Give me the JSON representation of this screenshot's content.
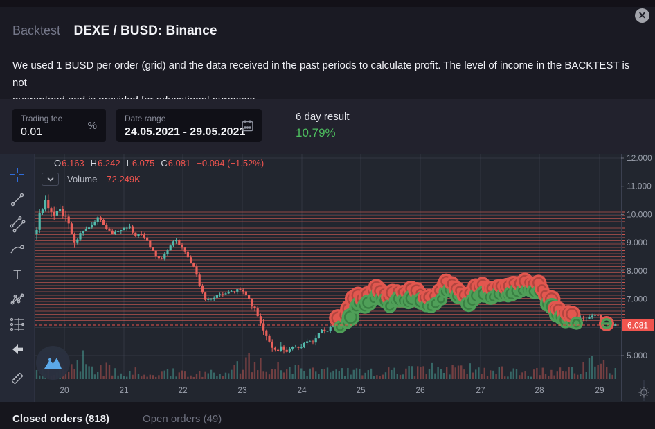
{
  "modal": {
    "eyebrow": "Backtest",
    "title": "DEXE / BUSD: Binance",
    "description_line1": "We used 1 BUSD per order (grid) and the data received in the past periods to calculate profit. The level of income in the BACKTEST is not",
    "description_line2": "guaranteed and is provided for educational purposes.",
    "close_label": "✕"
  },
  "controls": {
    "trading_fee": {
      "label": "Trading fee",
      "value": "0.01",
      "suffix": "%"
    },
    "date_range": {
      "label": "Date range",
      "value": "24.05.2021 - 29.05.2021"
    },
    "result": {
      "label": "6 day result",
      "value": "10.79%",
      "color": "#4dbc5e"
    }
  },
  "tabs": {
    "closed": "Closed orders (818)",
    "open": "Open orders (49)"
  },
  "chart_data": {
    "type": "candlestick",
    "legend": {
      "pairs": [
        [
          "O",
          "6.163"
        ],
        [
          "H",
          "6.242"
        ],
        [
          "L",
          "6.075"
        ],
        [
          "C",
          "6.081"
        ]
      ],
      "change": "−0.094 (−1.52%)"
    },
    "volume_legend": {
      "label": "Volume",
      "value": "72.249K"
    },
    "x_ticks": [
      {
        "label": "20",
        "x": 93
      },
      {
        "label": "21",
        "x": 179
      },
      {
        "label": "22",
        "x": 264
      },
      {
        "label": "23",
        "x": 350
      },
      {
        "label": "24",
        "x": 436
      },
      {
        "label": "25",
        "x": 521
      },
      {
        "label": "26",
        "x": 607
      },
      {
        "label": "27",
        "x": 694
      },
      {
        "label": "28",
        "x": 779
      },
      {
        "label": "29",
        "x": 866
      }
    ],
    "y_ticks": [
      {
        "label": "12.000",
        "price": 12
      },
      {
        "label": "11.000",
        "price": 11
      },
      {
        "label": "10.000",
        "price": 10
      },
      {
        "label": "9.000",
        "price": 9
      },
      {
        "label": "8.000",
        "price": 8
      },
      {
        "label": "7.000",
        "price": 7
      },
      {
        "label": "5.000",
        "price": 5
      }
    ],
    "grid_prices": [
      12,
      11,
      10,
      9,
      8,
      7,
      6,
      5
    ],
    "last_price": {
      "label": "6.081",
      "price": 6.081
    },
    "order_grid": {
      "top_price": 10.08,
      "step": 0.113,
      "count": 35
    },
    "marker_band": {
      "start_x": 490,
      "end_x": 832,
      "single_marker_x": 876
    },
    "price_path": [
      [
        52,
        9.3
      ],
      [
        58,
        10.1
      ],
      [
        66,
        10.5
      ],
      [
        72,
        10.2
      ],
      [
        78,
        9.9
      ],
      [
        84,
        10.25
      ],
      [
        90,
        10.1
      ],
      [
        97,
        9.8
      ],
      [
        104,
        9.2
      ],
      [
        110,
        9.05
      ],
      [
        118,
        9.4
      ],
      [
        126,
        9.55
      ],
      [
        134,
        9.65
      ],
      [
        142,
        9.9
      ],
      [
        148,
        9.7
      ],
      [
        155,
        9.45
      ],
      [
        163,
        9.3
      ],
      [
        171,
        9.4
      ],
      [
        179,
        9.5
      ],
      [
        187,
        9.55
      ],
      [
        194,
        9.25
      ],
      [
        202,
        9.3
      ],
      [
        210,
        9.15
      ],
      [
        218,
        8.8
      ],
      [
        226,
        8.5
      ],
      [
        232,
        8.35
      ],
      [
        239,
        8.65
      ],
      [
        246,
        8.85
      ],
      [
        253,
        9.1
      ],
      [
        260,
        8.9
      ],
      [
        268,
        8.65
      ],
      [
        276,
        8.3
      ],
      [
        283,
        8.0
      ],
      [
        290,
        7.3
      ],
      [
        297,
        7.0
      ],
      [
        305,
        7.05
      ],
      [
        313,
        7.1
      ],
      [
        321,
        7.15
      ],
      [
        329,
        7.3
      ],
      [
        337,
        7.25
      ],
      [
        345,
        7.35
      ],
      [
        353,
        7.2
      ],
      [
        361,
        6.95
      ],
      [
        369,
        6.55
      ],
      [
        376,
        6.15
      ],
      [
        383,
        5.7
      ],
      [
        391,
        5.35
      ],
      [
        399,
        5.2
      ],
      [
        407,
        5.3
      ],
      [
        414,
        5.15
      ],
      [
        421,
        5.25
      ],
      [
        429,
        5.3
      ],
      [
        436,
        5.35
      ],
      [
        444,
        5.55
      ],
      [
        451,
        5.45
      ],
      [
        458,
        5.65
      ],
      [
        465,
        5.95
      ],
      [
        472,
        5.8
      ],
      [
        479,
        6.05
      ],
      [
        487,
        6.15
      ],
      [
        494,
        6.2
      ],
      [
        501,
        6.45
      ],
      [
        509,
        6.8
      ],
      [
        517,
        6.95
      ],
      [
        524,
        6.9
      ],
      [
        531,
        7.05
      ],
      [
        539,
        7.3
      ],
      [
        546,
        7.25
      ],
      [
        554,
        7.05
      ],
      [
        562,
        6.95
      ],
      [
        570,
        7.1
      ],
      [
        578,
        7.05
      ],
      [
        586,
        7.0
      ],
      [
        594,
        7.15
      ],
      [
        602,
        7.1
      ],
      [
        610,
        7.0
      ],
      [
        617,
        6.9
      ],
      [
        625,
        7.05
      ],
      [
        633,
        7.2
      ],
      [
        641,
        7.5
      ],
      [
        649,
        7.45
      ],
      [
        657,
        7.25
      ],
      [
        665,
        7.15
      ],
      [
        673,
        7.05
      ],
      [
        681,
        7.15
      ],
      [
        689,
        7.3
      ],
      [
        697,
        7.35
      ],
      [
        705,
        7.25
      ],
      [
        713,
        7.3
      ],
      [
        721,
        7.35
      ],
      [
        729,
        7.25
      ],
      [
        737,
        7.4
      ],
      [
        745,
        7.45
      ],
      [
        753,
        7.5
      ],
      [
        761,
        7.4
      ],
      [
        769,
        7.45
      ],
      [
        777,
        7.35
      ],
      [
        785,
        7.15
      ],
      [
        793,
        6.9
      ],
      [
        801,
        6.65
      ],
      [
        809,
        6.45
      ],
      [
        817,
        6.35
      ],
      [
        825,
        6.4
      ],
      [
        833,
        6.25
      ],
      [
        841,
        6.35
      ],
      [
        849,
        6.3
      ],
      [
        857,
        6.5
      ],
      [
        865,
        6.35
      ],
      [
        873,
        6.2
      ],
      [
        881,
        6.12
      ],
      [
        890,
        6.08
      ]
    ],
    "colors": {
      "up": "#53b9ab",
      "down": "#e8605a",
      "vol_up": "rgba(83,185,171,0.45)",
      "vol_down": "rgba(229,97,90,0.42)",
      "order_line": "#dd5f57",
      "last_price_line": "#f0544e",
      "last_price_bg": "#f0544e",
      "marker_buy": "#4f9f58",
      "marker_sell": "#e2574f",
      "axis_text": "#9ba0ac",
      "grid": "rgba(140,148,170,0.14)",
      "axis_border": "#3b4050"
    }
  },
  "toolbar": {
    "icons": [
      "crosshair",
      "trend-line",
      "fib-retracement",
      "brush",
      "text-tool",
      "xabcd-pattern",
      "projection",
      "back-arrow",
      "ruler",
      "arc-tool"
    ]
  },
  "axis_settings_icon": "price-scale-settings"
}
